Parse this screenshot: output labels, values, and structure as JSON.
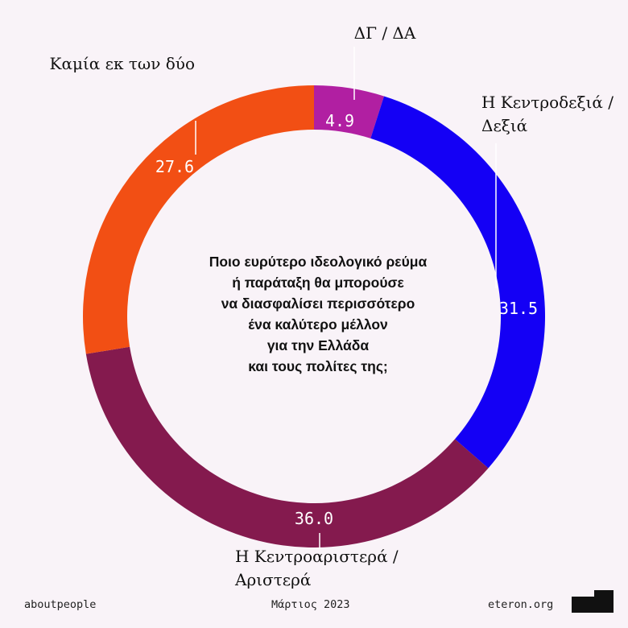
{
  "chart_data": {
    "type": "pie",
    "donut": true,
    "segments": [
      {
        "label": "ΔΓ / ΔΑ",
        "value": 4.9,
        "value_label": "4.9",
        "color": "#b11fa2"
      },
      {
        "label": "Η Κεντροδεξιά / Δεξιά",
        "value": 31.5,
        "value_label": "31.5",
        "color": "#1400f5"
      },
      {
        "label": "Η Κεντροαριστερά / Αριστερά",
        "value": 36.0,
        "value_label": "36.0",
        "color": "#841a4e"
      },
      {
        "label": "Καμία εκ των δύο",
        "value": 27.6,
        "value_label": "27.6",
        "color": "#f24f14"
      }
    ],
    "start_angle": "top",
    "direction": "clockwise"
  },
  "labels": {
    "dg_da": "ΔΓ / ΔΑ",
    "right_line1": "Η Κεντροδεξιά /",
    "right_line2": "Δεξιά",
    "left_line1": "Η Κεντροαριστερά /",
    "left_line2": "Αριστερά",
    "none": "Καμία εκ των δύο"
  },
  "question": [
    "Ποιο ευρύτερο ιδεολογικό ρεύμα",
    "ή παράταξη θα μπορούσε",
    "να διασφαλίσει περισσότερο",
    "ένα καλύτερο μέλλον",
    "για την Ελλάδα",
    "και τους πολίτες της;"
  ],
  "footer": {
    "left": "aboutpeople",
    "center": "Μάρτιος 2023",
    "right": "eteron.org"
  }
}
